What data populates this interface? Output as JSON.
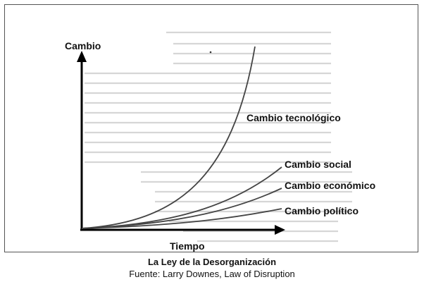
{
  "diagram": {
    "y_axis_label": "Cambio",
    "x_axis_label": "Tiempo",
    "curves": [
      {
        "label": "Cambio tecnológico"
      },
      {
        "label": "Cambio social"
      },
      {
        "label": "Cambio económico"
      },
      {
        "label": "Cambio político"
      }
    ],
    "colors": {
      "curve": "#444444",
      "axis": "#000000",
      "background_text": "#c8c8c8"
    }
  },
  "caption": {
    "title": "La Ley de la Desorganización",
    "source": "Fuente: Larry Downes, Law of Disruption"
  }
}
